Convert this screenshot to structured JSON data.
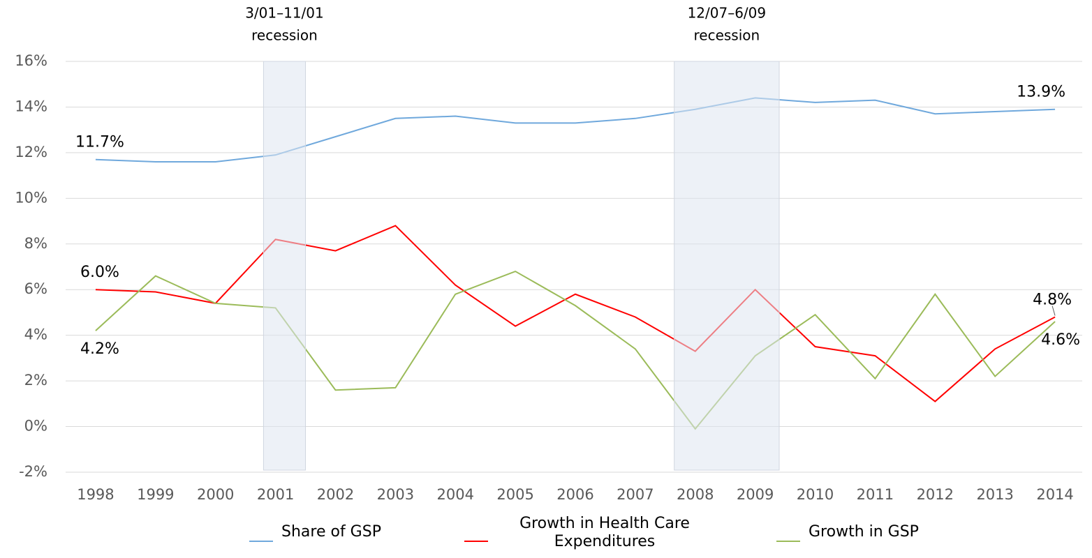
{
  "chart_data": {
    "type": "line",
    "categories": [
      "1998",
      "1999",
      "2000",
      "2001",
      "2002",
      "2003",
      "2004",
      "2005",
      "2006",
      "2007",
      "2008",
      "2009",
      "2010",
      "2011",
      "2012",
      "2013",
      "2014"
    ],
    "series": [
      {
        "name": "Share of GSP",
        "color": "#6fa8dc",
        "values": [
          11.7,
          11.6,
          11.6,
          11.9,
          12.7,
          13.5,
          13.6,
          13.3,
          13.3,
          13.5,
          13.9,
          14.4,
          14.2,
          14.3,
          13.7,
          13.8,
          13.9
        ],
        "value_labels": [
          "11.7%",
          null,
          null,
          null,
          null,
          null,
          null,
          null,
          null,
          null,
          null,
          null,
          null,
          null,
          null,
          null,
          "13.9%"
        ]
      },
      {
        "name": "Growth in Health Care Expenditures",
        "color": "#ff0000",
        "values": [
          6.0,
          5.9,
          5.4,
          8.2,
          7.7,
          8.8,
          6.2,
          4.4,
          5.8,
          4.8,
          3.3,
          6.0,
          3.5,
          3.1,
          1.1,
          3.4,
          4.8
        ],
        "value_labels": [
          "6.0%",
          null,
          null,
          null,
          null,
          null,
          null,
          null,
          null,
          null,
          null,
          null,
          null,
          null,
          null,
          null,
          "4.8%"
        ]
      },
      {
        "name": "Growth in GSP",
        "color": "#9bbb59",
        "values": [
          4.2,
          6.6,
          5.4,
          5.2,
          1.6,
          1.7,
          5.8,
          6.8,
          5.3,
          3.4,
          -0.1,
          3.1,
          4.9,
          2.1,
          5.8,
          2.2,
          4.6
        ],
        "value_labels": [
          "4.2%",
          null,
          null,
          null,
          null,
          null,
          null,
          null,
          null,
          null,
          null,
          null,
          null,
          null,
          null,
          null,
          "4.6%"
        ]
      }
    ],
    "recessions": [
      {
        "label": [
          "3/01–11/01",
          "recession"
        ],
        "x_start": 2000.8,
        "x_end": 2001.5
      },
      {
        "label": [
          "12/07–6/09",
          "recession"
        ],
        "x_start": 2007.65,
        "x_end": 2009.4
      }
    ],
    "ylim": [
      -2,
      16
    ],
    "yticks": [
      {
        "value": -2,
        "label": "-2%"
      },
      {
        "value": 0,
        "label": "0%"
      },
      {
        "value": 2,
        "label": "2%"
      },
      {
        "value": 4,
        "label": "4%"
      },
      {
        "value": 6,
        "label": "6%"
      },
      {
        "value": 8,
        "label": "8%"
      },
      {
        "value": 10,
        "label": "10%"
      },
      {
        "value": 12,
        "label": "12%"
      },
      {
        "value": 14,
        "label": "14%"
      },
      {
        "value": 16,
        "label": "16%"
      }
    ],
    "grid": true,
    "legend": "bottom"
  }
}
